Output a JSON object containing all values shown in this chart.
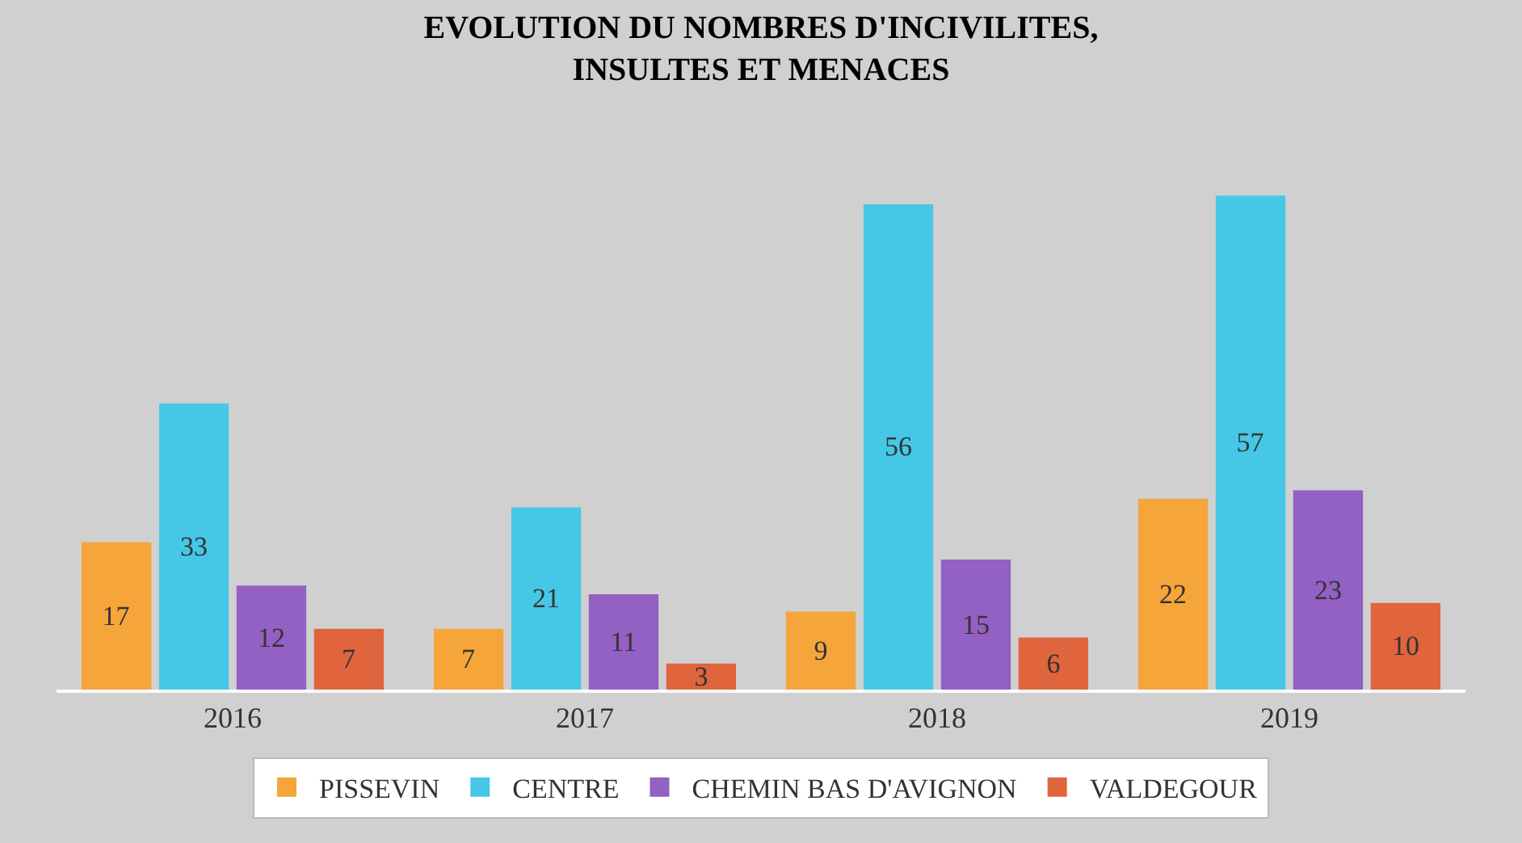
{
  "chart_data": {
    "type": "bar",
    "title": "EVOLUTION DU NOMBRES D'INCIVILITES,\nINSULTES ET MENACES",
    "categories": [
      "2016",
      "2017",
      "2018",
      "2019"
    ],
    "series": [
      {
        "name": "PISSEVIN",
        "color": "#f5a53a",
        "values": [
          17,
          7,
          9,
          22
        ]
      },
      {
        "name": "CENTRE",
        "color": "#45c8e6",
        "values": [
          33,
          21,
          56,
          57
        ]
      },
      {
        "name": "CHEMIN BAS D'AVIGNON",
        "color": "#9360c4",
        "values": [
          12,
          11,
          15,
          23
        ]
      },
      {
        "name": "VALDEGOUR",
        "color": "#e0643c",
        "values": [
          7,
          3,
          6,
          10
        ]
      }
    ],
    "data_labels": true,
    "legend": "bottom",
    "grid": false,
    "tick_labels": "x"
  }
}
